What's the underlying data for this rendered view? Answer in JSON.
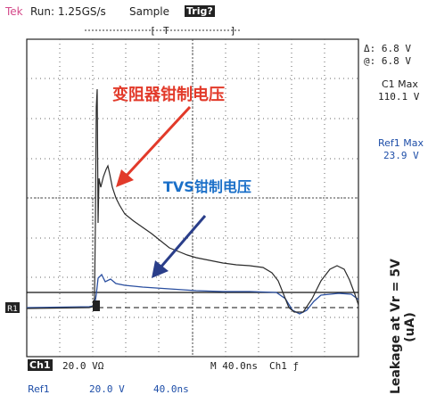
{
  "header": {
    "brand": "Tek",
    "run_status": "Run: 1.25GS/s",
    "mode": "Sample",
    "trigger_badge": "Trig?"
  },
  "readouts": {
    "delta": "Δ: 6.8 V",
    "at": "@: 6.8 V",
    "c1_max_label": "C1 Max",
    "c1_max_value": "110.1 V",
    "ref1_max_label": "Ref1 Max",
    "ref1_max_value": "23.9 V"
  },
  "annotations": {
    "varistor": "变阻器钳制电压",
    "tvs": "TVS钳制电压"
  },
  "side_label": {
    "line1": "Leakage at Vr = 5V",
    "line2": "(uA)"
  },
  "footer": {
    "ch1_badge": "Ch1",
    "ch1_scale": "20.0 VΩ",
    "timebase": "M 40.0ns",
    "trigger_source": "Ch1 ƒ",
    "ref1_label": "Ref1",
    "ref1_scale": "20.0 V",
    "ref1_time": "40.0ns"
  },
  "colors": {
    "varistor_trace": "#2a2a2a",
    "tvs_trace": "#2a4fa0",
    "annotation_red": "#e23a2a",
    "annotation_blue": "#1a6fc8"
  }
}
